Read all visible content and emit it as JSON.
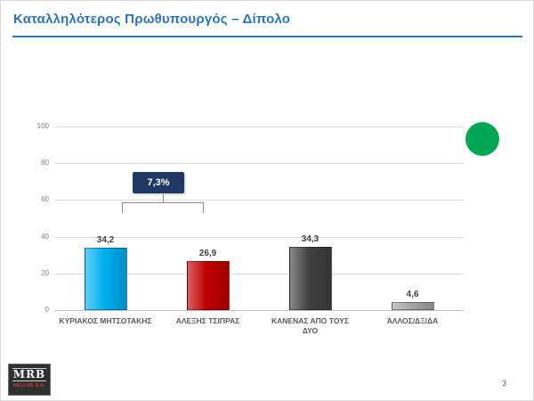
{
  "slide": {
    "title": "Καταλληλότερος Πρωθυπουργός – Δίπολο",
    "page_number": "3",
    "accent_color": "#2e74b5"
  },
  "annotation": {
    "label": "7,3%",
    "box_color": "#203864"
  },
  "decorations": {
    "green_circle_color": "#00a651"
  },
  "logo": {
    "name": "MRB",
    "subtitle": "HELLAS S.A."
  },
  "chart_data": {
    "type": "bar",
    "categories": [
      "ΚΥΡΙΑΚΟΣ ΜΗΤΣΟΤΑΚΗΣ",
      "ΑΛΕΞΗΣ ΤΣΙΠΡΑΣ",
      "ΚΑΝΕΝΑΣ ΑΠΟ ΤΟΥΣ ΔΥΟ",
      "ΆΛΛΟΣ/ΔΞ/ΔΑ"
    ],
    "values": [
      34.2,
      26.9,
      34.3,
      4.6
    ],
    "value_labels": [
      "34,2",
      "26,9",
      "34,3",
      "4,6"
    ],
    "bar_colors": [
      "#00b0f0",
      "#c00000",
      "#404040",
      "#a6a6a6"
    ],
    "title": "",
    "xlabel": "",
    "ylabel": "",
    "ylim": [
      0,
      100
    ],
    "yticks": [
      0,
      20,
      40,
      60,
      80,
      100
    ],
    "grid": true,
    "legend": false,
    "annotation": {
      "text": "7,3%",
      "between_bars": [
        0,
        1
      ]
    }
  }
}
